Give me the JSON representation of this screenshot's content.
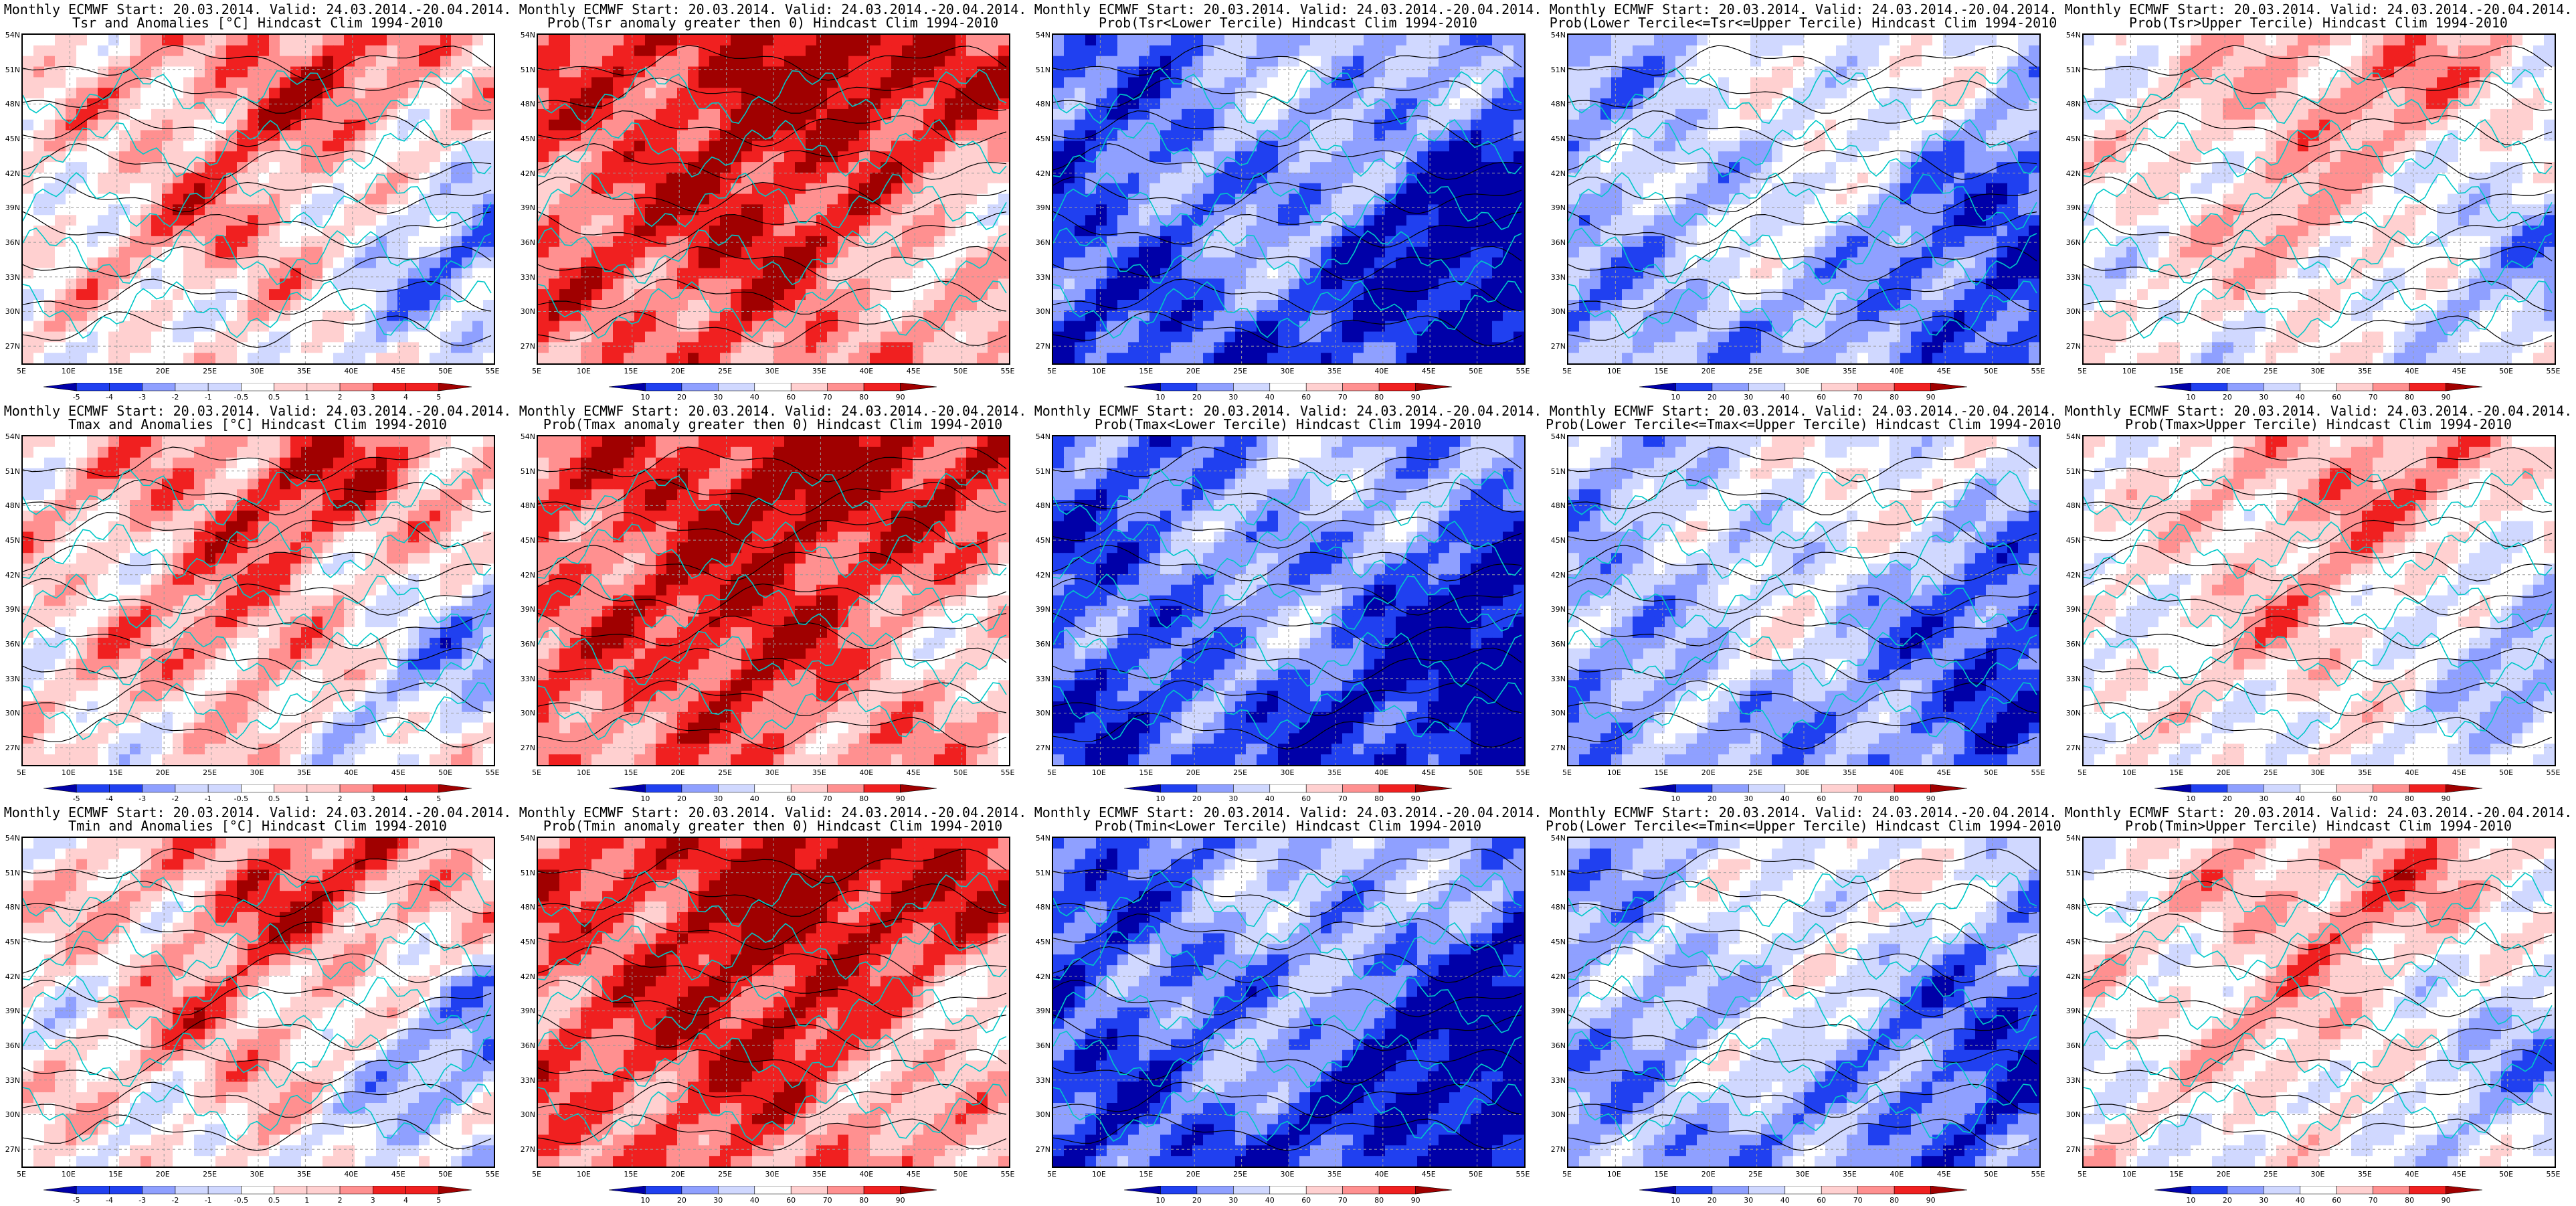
{
  "title_line1": "Monthly ECMWF Start: 20.03.2014. Valid: 24.03.2014.-20.04.2014.",
  "lat_ticks": [
    "54N",
    "51N",
    "48N",
    "45N",
    "42N",
    "39N",
    "36N",
    "33N",
    "30N",
    "27N"
  ],
  "lon_ticks": [
    "5E",
    "10E",
    "15E",
    "20E",
    "25E",
    "30E",
    "35E",
    "40E",
    "45E",
    "50E",
    "55E"
  ],
  "anom_levels": [
    "-5",
    "-4",
    "-3",
    "-2",
    "-1",
    "-0.5",
    "0.5",
    "1",
    "2",
    "3",
    "4",
    "5"
  ],
  "prob_levels": [
    "10",
    "20",
    "30",
    "40",
    "60",
    "70",
    "80",
    "90"
  ],
  "colors": {
    "deep_blue": "#0000a8",
    "blue": "#2040f0",
    "light_blue": "#8fa0ff",
    "pale_blue": "#d0d8ff",
    "white": "#ffffff",
    "pale_red": "#ffd0d0",
    "light_red": "#ff9090",
    "red": "#f02020",
    "deep_red": "#a00000",
    "contour": "#000000",
    "coast": "#00c8c8"
  },
  "panels": [
    {
      "title2": "Tsr and Anomalies [°C] Hindcast Clim 1994-2010",
      "type": "anom",
      "bias": 0.25
    },
    {
      "title2": "Prob(Tsr anomaly greater then 0) Hindcast Clim 1994-2010",
      "type": "prob",
      "bias": 0.55
    },
    {
      "title2": "Prob(Tsr<Lower Tercile) Hindcast Clim 1994-2010",
      "type": "prob",
      "bias": -0.75
    },
    {
      "title2": "Prob(Lower Tercile<=Tsr<=Upper Tercile) Hindcast Clim 1994-2010",
      "type": "prob",
      "bias": -0.45
    },
    {
      "title2": "Prob(Tsr>Upper Tercile) Hindcast Clim 1994-2010",
      "type": "prob",
      "bias": 0.0
    },
    {
      "title2": "Tmax and Anomalies [°C] Hindcast Clim 1994-2010",
      "type": "anom",
      "bias": 0.3
    },
    {
      "title2": "Prob(Tmax anomaly greater then 0) Hindcast Clim 1994-2010",
      "type": "prob",
      "bias": 0.55
    },
    {
      "title2": "Prob(Tmax<Lower Tercile) Hindcast Clim 1994-2010",
      "type": "prob",
      "bias": -0.75
    },
    {
      "title2": "Prob(Lower Tercile<=Tmax<=Upper Tercile) Hindcast Clim 1994-2010",
      "type": "prob",
      "bias": -0.45
    },
    {
      "title2": "Prob(Tmax>Upper Tercile) Hindcast Clim 1994-2010",
      "type": "prob",
      "bias": 0.0
    },
    {
      "title2": "Tmin and Anomalies [°C] Hindcast Clim 1994-2010",
      "type": "anom",
      "bias": 0.25
    },
    {
      "title2": "Prob(Tmin anomaly greater then 0) Hindcast Clim 1994-2010",
      "type": "prob",
      "bias": 0.55
    },
    {
      "title2": "Prob(Tmin<Lower Tercile) Hindcast Clim 1994-2010",
      "type": "prob",
      "bias": -0.75
    },
    {
      "title2": "Prob(Lower Tercile<=Tmin<=Upper Tercile) Hindcast Clim 1994-2010",
      "type": "prob",
      "bias": -0.45
    },
    {
      "title2": "Prob(Tmin>Upper Tercile) Hindcast Clim 1994-2010",
      "type": "prob",
      "bias": 0.0
    }
  ]
}
